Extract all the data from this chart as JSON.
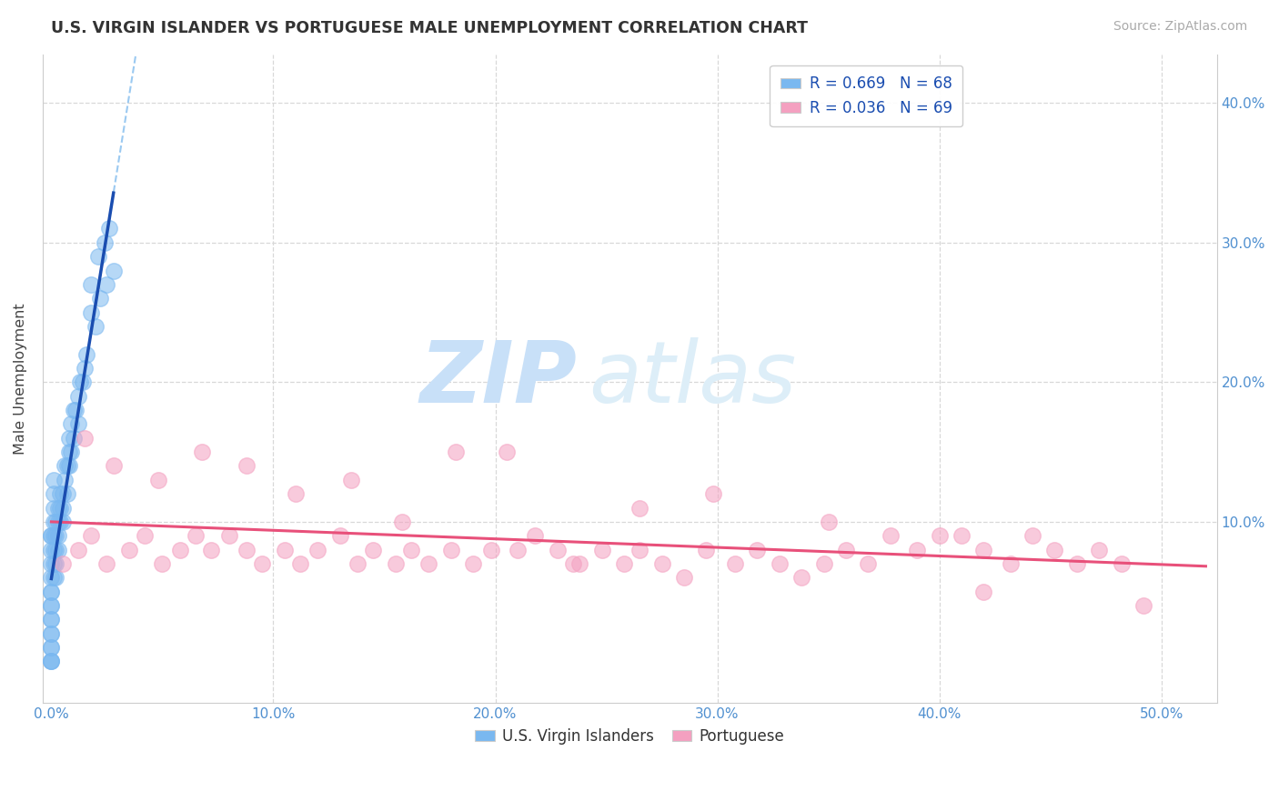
{
  "title": "U.S. VIRGIN ISLANDER VS PORTUGUESE MALE UNEMPLOYMENT CORRELATION CHART",
  "source": "Source: ZipAtlas.com",
  "ylabel": "Male Unemployment",
  "xlim": [
    -0.004,
    0.525
  ],
  "ylim": [
    -0.03,
    0.435
  ],
  "blue_R": 0.669,
  "blue_N": 68,
  "pink_R": 0.036,
  "pink_N": 69,
  "blue_color": "#7ab8f0",
  "pink_color": "#f4a0c0",
  "blue_line_color": "#1a4db0",
  "pink_line_color": "#e8507a",
  "blue_dashed_color": "#90c4f0",
  "blue_label": "U.S. Virgin Islanders",
  "pink_label": "Portuguese",
  "watermark_zip": "ZIP",
  "watermark_atlas": "atlas",
  "background_color": "#ffffff",
  "grid_color": "#d8d8d8",
  "title_color": "#333333",
  "tick_color": "#5090d0",
  "axis_color": "#cccccc",
  "blue_x": [
    0.0,
    0.0,
    0.0,
    0.0,
    0.0,
    0.0,
    0.0,
    0.0,
    0.0,
    0.0,
    0.0,
    0.0,
    0.0,
    0.0,
    0.0,
    0.0,
    0.0,
    0.0,
    0.001,
    0.001,
    0.001,
    0.001,
    0.001,
    0.001,
    0.001,
    0.001,
    0.002,
    0.002,
    0.002,
    0.002,
    0.002,
    0.003,
    0.003,
    0.003,
    0.003,
    0.004,
    0.004,
    0.004,
    0.005,
    0.005,
    0.005,
    0.006,
    0.006,
    0.007,
    0.007,
    0.008,
    0.008,
    0.008,
    0.009,
    0.009,
    0.01,
    0.01,
    0.011,
    0.012,
    0.012,
    0.013,
    0.014,
    0.015,
    0.016,
    0.018,
    0.02,
    0.022,
    0.025,
    0.028,
    0.018,
    0.021,
    0.024,
    0.026
  ],
  "blue_y": [
    0.0,
    0.0,
    0.01,
    0.02,
    0.03,
    0.04,
    0.05,
    0.06,
    0.07,
    0.08,
    0.09,
    0.09,
    0.0,
    0.01,
    0.02,
    0.03,
    0.04,
    0.05,
    0.06,
    0.07,
    0.08,
    0.09,
    0.1,
    0.11,
    0.12,
    0.13,
    0.06,
    0.07,
    0.08,
    0.09,
    0.1,
    0.08,
    0.09,
    0.1,
    0.11,
    0.1,
    0.11,
    0.12,
    0.1,
    0.11,
    0.12,
    0.13,
    0.14,
    0.12,
    0.14,
    0.14,
    0.15,
    0.16,
    0.15,
    0.17,
    0.16,
    0.18,
    0.18,
    0.17,
    0.19,
    0.2,
    0.2,
    0.21,
    0.22,
    0.25,
    0.24,
    0.26,
    0.27,
    0.28,
    0.27,
    0.29,
    0.3,
    0.31
  ],
  "pink_x": [
    0.005,
    0.012,
    0.018,
    0.025,
    0.035,
    0.042,
    0.05,
    0.058,
    0.065,
    0.072,
    0.08,
    0.088,
    0.095,
    0.105,
    0.112,
    0.12,
    0.13,
    0.138,
    0.145,
    0.155,
    0.162,
    0.17,
    0.18,
    0.19,
    0.198,
    0.21,
    0.218,
    0.228,
    0.238,
    0.248,
    0.258,
    0.265,
    0.275,
    0.285,
    0.295,
    0.308,
    0.318,
    0.328,
    0.338,
    0.348,
    0.358,
    0.368,
    0.378,
    0.39,
    0.4,
    0.41,
    0.42,
    0.432,
    0.442,
    0.452,
    0.462,
    0.472,
    0.482,
    0.492,
    0.015,
    0.028,
    0.048,
    0.068,
    0.088,
    0.11,
    0.135,
    0.158,
    0.182,
    0.205,
    0.235,
    0.265,
    0.298,
    0.35,
    0.42
  ],
  "pink_y": [
    0.07,
    0.08,
    0.09,
    0.07,
    0.08,
    0.09,
    0.07,
    0.08,
    0.09,
    0.08,
    0.09,
    0.08,
    0.07,
    0.08,
    0.07,
    0.08,
    0.09,
    0.07,
    0.08,
    0.07,
    0.08,
    0.07,
    0.08,
    0.07,
    0.08,
    0.08,
    0.09,
    0.08,
    0.07,
    0.08,
    0.07,
    0.08,
    0.07,
    0.06,
    0.08,
    0.07,
    0.08,
    0.07,
    0.06,
    0.07,
    0.08,
    0.07,
    0.09,
    0.08,
    0.09,
    0.09,
    0.08,
    0.07,
    0.09,
    0.08,
    0.07,
    0.08,
    0.07,
    0.04,
    0.16,
    0.14,
    0.13,
    0.15,
    0.14,
    0.12,
    0.13,
    0.1,
    0.15,
    0.15,
    0.07,
    0.11,
    0.12,
    0.1,
    0.05
  ]
}
